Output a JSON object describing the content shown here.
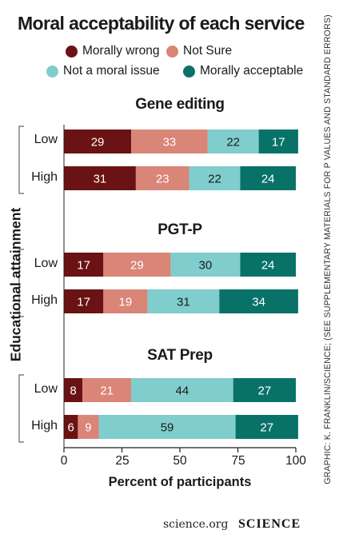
{
  "chart_data": {
    "type": "bar",
    "orientation": "horizontal",
    "stacked": true,
    "title": "Moral acceptability of each service",
    "xlabel": "Percent of participants",
    "ylabel": "Educational attainment",
    "xlim": [
      0,
      100
    ],
    "xticks": [
      "0",
      "25",
      "50",
      "75",
      "100"
    ],
    "legend": {
      "placement": "top",
      "entries": [
        {
          "name": "Morally wrong",
          "color": "#6b1214"
        },
        {
          "name": "Not Sure",
          "color": "#d98578"
        },
        {
          "name": "Not a moral issue",
          "color": "#7fcdcc"
        },
        {
          "name": "Morally acceptable",
          "color": "#087269"
        }
      ]
    },
    "panels": [
      {
        "title": "Gene editing",
        "rows": [
          {
            "label": "Low",
            "values": [
              29,
              33,
              22,
              17
            ]
          },
          {
            "label": "High",
            "values": [
              31,
              23,
              22,
              24
            ]
          }
        ]
      },
      {
        "title": "PGT-P",
        "rows": [
          {
            "label": "Low",
            "values": [
              17,
              29,
              30,
              24
            ]
          },
          {
            "label": "High",
            "values": [
              17,
              19,
              31,
              34
            ]
          }
        ]
      },
      {
        "title": "SAT Prep",
        "rows": [
          {
            "label": "Low",
            "values": [
              8,
              21,
              44,
              27
            ]
          },
          {
            "label": "High",
            "values": [
              6,
              9,
              59,
              27
            ]
          }
        ]
      }
    ],
    "grid": false
  },
  "credit": "GRAPHIC: K. FRANKLIN/SCIENCE; (SEE SUPPLEMENTARY MATERIALS FOR P VALUES AND STANDARD ERRORS)",
  "footer": {
    "url": "science.org",
    "brand": "SCIENCE"
  }
}
